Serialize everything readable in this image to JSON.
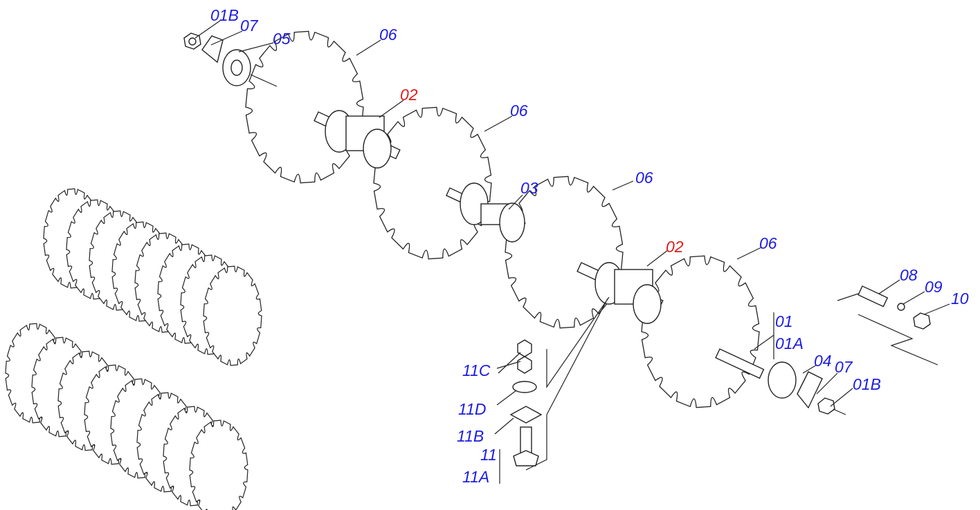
{
  "callouts": [
    {
      "label": "01B"
    },
    {
      "label": "07"
    },
    {
      "label": "05"
    },
    {
      "label": "06"
    },
    {
      "label": "02"
    },
    {
      "label": "06"
    },
    {
      "label": "03"
    },
    {
      "label": "06"
    },
    {
      "label": "02"
    },
    {
      "label": "06"
    },
    {
      "label": "08"
    },
    {
      "label": "09"
    },
    {
      "label": "10"
    },
    {
      "label": "01"
    },
    {
      "label": "01A"
    },
    {
      "label": "04"
    },
    {
      "label": "07"
    },
    {
      "label": "01B"
    },
    {
      "label": "11C"
    },
    {
      "label": "11D"
    },
    {
      "label": "11B"
    },
    {
      "label": "11"
    },
    {
      "label": "11A"
    }
  ]
}
